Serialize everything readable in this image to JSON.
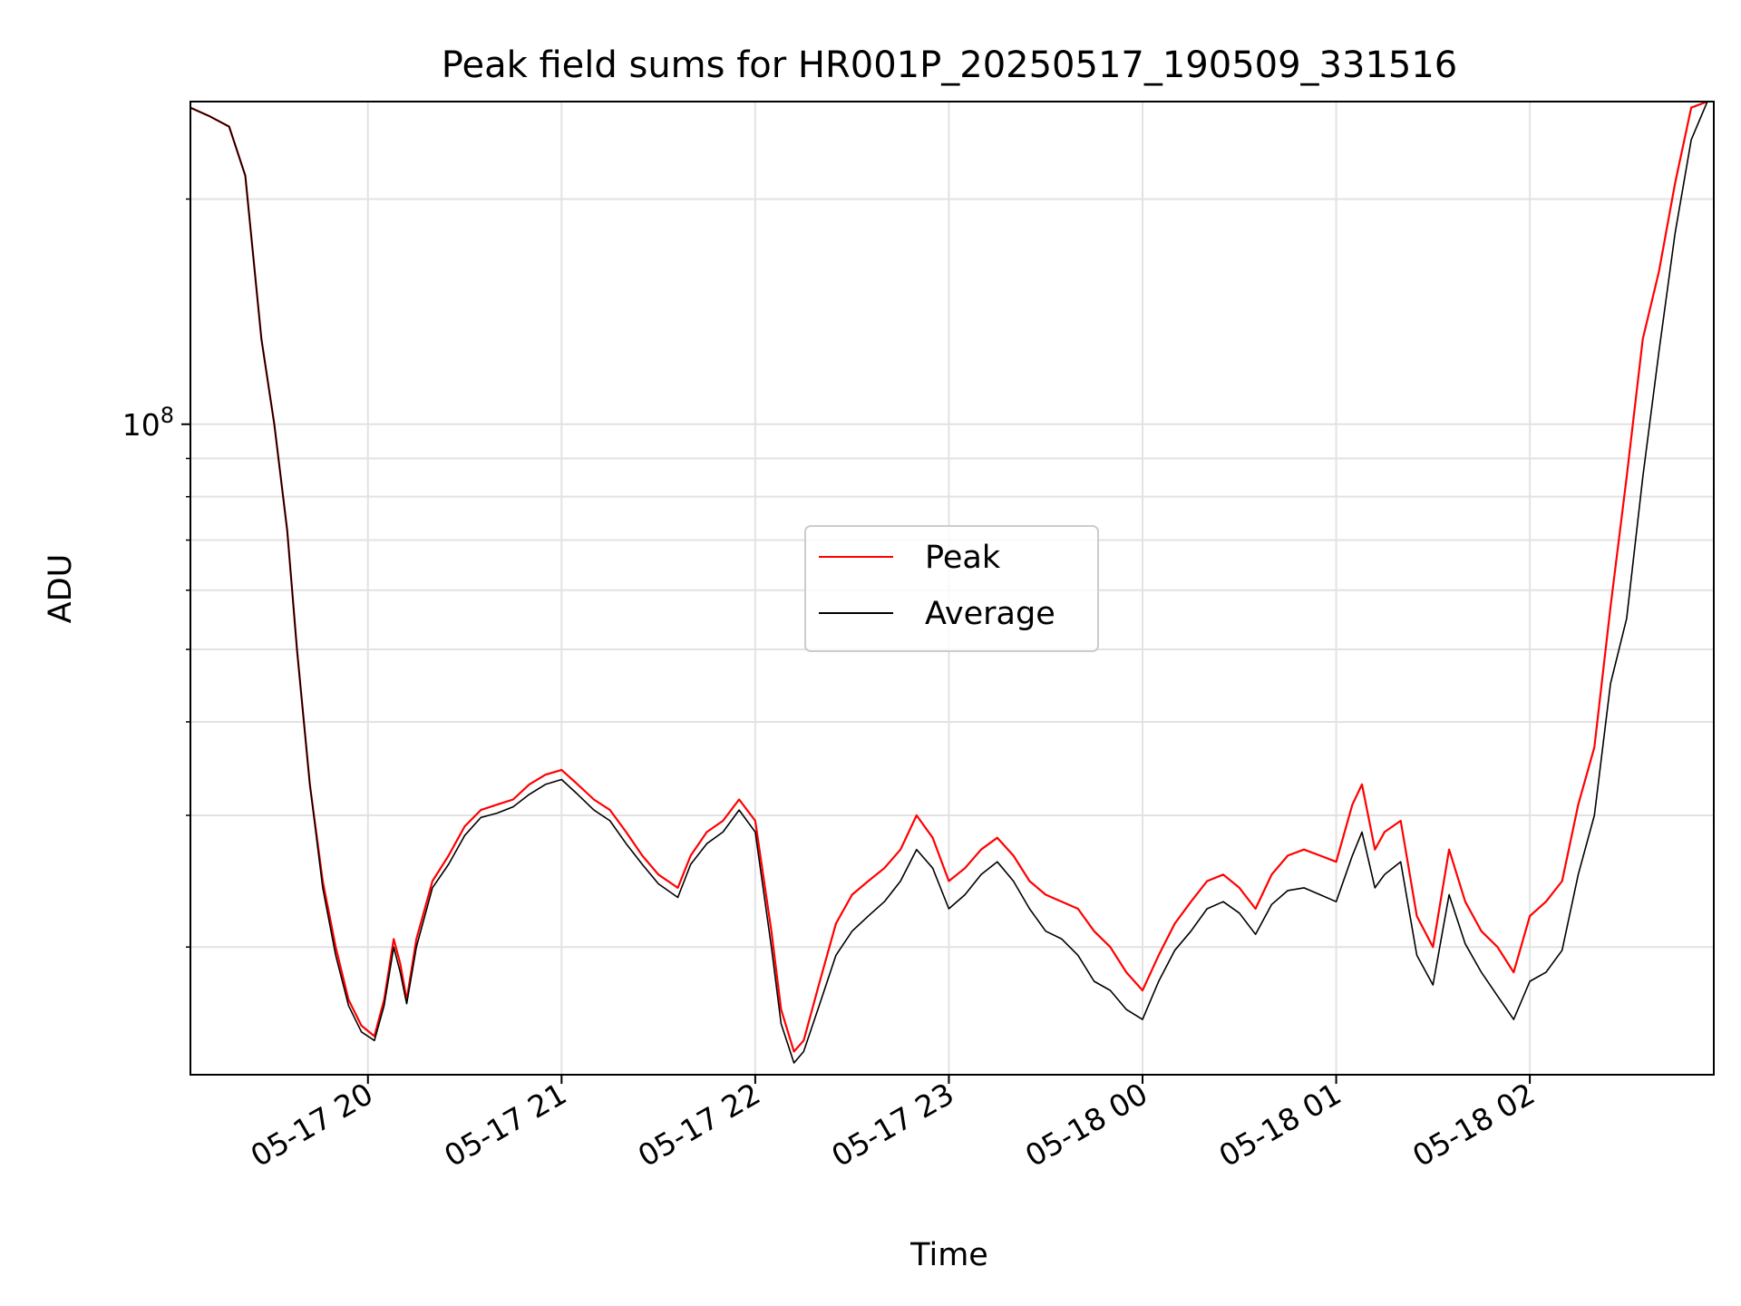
{
  "chart_data": {
    "type": "line",
    "title": "Peak field sums for HR001P_20250517_190509_331516",
    "xlabel": "Time",
    "ylabel": "ADU",
    "y_scale": "log",
    "ylim": [
      13500000,
      270000000
    ],
    "xlim": [
      "2025-05-17 19:05",
      "2025-05-18 02:57"
    ],
    "grid": true,
    "legend_position": "center",
    "x_tick_labels": [
      "05-17 20",
      "05-17 21",
      "05-17 22",
      "05-17 23",
      "05-18 00",
      "05-18 01",
      "05-18 02"
    ],
    "x_ticks": [
      "2025-05-17 20:00",
      "2025-05-17 21:00",
      "2025-05-17 22:00",
      "2025-05-17 23:00",
      "2025-05-18 00:00",
      "2025-05-18 01:00",
      "2025-05-18 02:00"
    ],
    "y_tick_labels": [
      {
        "base": "10",
        "exp": "8",
        "value": 100000000
      }
    ],
    "series": [
      {
        "name": "Peak",
        "color": "#ff0000",
        "x": [
          "2025-05-17 19:05",
          "2025-05-17 19:11",
          "2025-05-17 19:17",
          "2025-05-17 19:22",
          "2025-05-17 19:27",
          "2025-05-17 19:31",
          "2025-05-17 19:35",
          "2025-05-17 19:38",
          "2025-05-17 19:42",
          "2025-05-17 19:46",
          "2025-05-17 19:50",
          "2025-05-17 19:54",
          "2025-05-17 19:58",
          "2025-05-17 20:02",
          "2025-05-17 20:05",
          "2025-05-17 20:08",
          "2025-05-17 20:10",
          "2025-05-17 20:12",
          "2025-05-17 20:15",
          "2025-05-17 20:20",
          "2025-05-17 20:25",
          "2025-05-17 20:30",
          "2025-05-17 20:35",
          "2025-05-17 20:40",
          "2025-05-17 20:45",
          "2025-05-17 20:50",
          "2025-05-17 20:55",
          "2025-05-17 21:00",
          "2025-05-17 21:05",
          "2025-05-17 21:10",
          "2025-05-17 21:15",
          "2025-05-17 21:20",
          "2025-05-17 21:25",
          "2025-05-17 21:30",
          "2025-05-17 21:36",
          "2025-05-17 21:40",
          "2025-05-17 21:45",
          "2025-05-17 21:50",
          "2025-05-17 21:55",
          "2025-05-17 22:00",
          "2025-05-17 22:05",
          "2025-05-17 22:08",
          "2025-05-17 22:12",
          "2025-05-17 22:15",
          "2025-05-17 22:20",
          "2025-05-17 22:25",
          "2025-05-17 22:30",
          "2025-05-17 22:35",
          "2025-05-17 22:40",
          "2025-05-17 22:45",
          "2025-05-17 22:50",
          "2025-05-17 22:55",
          "2025-05-17 23:00",
          "2025-05-17 23:05",
          "2025-05-17 23:10",
          "2025-05-17 23:15",
          "2025-05-17 23:20",
          "2025-05-17 23:25",
          "2025-05-17 23:30",
          "2025-05-17 23:35",
          "2025-05-17 23:40",
          "2025-05-17 23:45",
          "2025-05-17 23:50",
          "2025-05-17 23:55",
          "2025-05-18 00:00",
          "2025-05-18 00:05",
          "2025-05-18 00:10",
          "2025-05-18 00:15",
          "2025-05-18 00:20",
          "2025-05-18 00:25",
          "2025-05-18 00:30",
          "2025-05-18 00:35",
          "2025-05-18 00:40",
          "2025-05-18 00:45",
          "2025-05-18 00:50",
          "2025-05-18 00:55",
          "2025-05-18 01:00",
          "2025-05-18 01:05",
          "2025-05-18 01:08",
          "2025-05-18 01:12",
          "2025-05-18 01:15",
          "2025-05-18 01:20",
          "2025-05-18 01:25",
          "2025-05-18 01:30",
          "2025-05-18 01:35",
          "2025-05-18 01:40",
          "2025-05-18 01:45",
          "2025-05-18 01:50",
          "2025-05-18 01:55",
          "2025-05-18 02:00",
          "2025-05-18 02:05",
          "2025-05-18 02:10",
          "2025-05-18 02:15",
          "2025-05-18 02:20",
          "2025-05-18 02:25",
          "2025-05-18 02:30",
          "2025-05-18 02:35",
          "2025-05-18 02:40",
          "2025-05-18 02:45",
          "2025-05-18 02:50",
          "2025-05-18 02:55"
        ],
        "y": [
          265000000,
          258000000,
          250000000,
          215000000,
          130000000,
          100000000,
          72000000,
          50000000,
          33000000,
          24500000,
          20000000,
          17000000,
          15700000,
          15200000,
          17000000,
          20500000,
          19000000,
          17000000,
          20500000,
          24500000,
          26500000,
          29000000,
          30500000,
          31000000,
          31500000,
          33000000,
          34000000,
          34500000,
          33000000,
          31500000,
          30500000,
          28500000,
          26500000,
          25000000,
          24000000,
          26500000,
          28500000,
          29500000,
          31500000,
          29500000,
          21000000,
          16500000,
          14500000,
          15000000,
          18000000,
          21500000,
          23500000,
          24500000,
          25500000,
          27000000,
          30000000,
          28000000,
          24500000,
          25500000,
          27000000,
          28000000,
          26500000,
          24500000,
          23500000,
          23000000,
          22500000,
          21000000,
          20000000,
          18500000,
          17500000,
          19500000,
          21500000,
          23000000,
          24500000,
          25000000,
          24000000,
          22500000,
          25000000,
          26500000,
          27000000,
          26500000,
          26000000,
          31000000,
          33000000,
          27000000,
          28500000,
          29500000,
          22000000,
          20000000,
          27000000,
          23000000,
          21000000,
          20000000,
          18500000,
          22000000,
          23000000,
          24500000,
          31000000,
          37000000,
          57000000,
          85000000,
          130000000,
          160000000,
          210000000,
          265000000,
          270000000
        ]
      },
      {
        "name": "Average",
        "color": "#000000",
        "x": [
          "2025-05-17 19:05",
          "2025-05-17 19:11",
          "2025-05-17 19:17",
          "2025-05-17 19:22",
          "2025-05-17 19:27",
          "2025-05-17 19:31",
          "2025-05-17 19:35",
          "2025-05-17 19:38",
          "2025-05-17 19:42",
          "2025-05-17 19:46",
          "2025-05-17 19:50",
          "2025-05-17 19:54",
          "2025-05-17 19:58",
          "2025-05-17 20:02",
          "2025-05-17 20:05",
          "2025-05-17 20:08",
          "2025-05-17 20:10",
          "2025-05-17 20:12",
          "2025-05-17 20:15",
          "2025-05-17 20:20",
          "2025-05-17 20:25",
          "2025-05-17 20:30",
          "2025-05-17 20:35",
          "2025-05-17 20:40",
          "2025-05-17 20:45",
          "2025-05-17 20:50",
          "2025-05-17 20:55",
          "2025-05-17 21:00",
          "2025-05-17 21:05",
          "2025-05-17 21:10",
          "2025-05-17 21:15",
          "2025-05-17 21:20",
          "2025-05-17 21:25",
          "2025-05-17 21:30",
          "2025-05-17 21:36",
          "2025-05-17 21:40",
          "2025-05-17 21:45",
          "2025-05-17 21:50",
          "2025-05-17 21:55",
          "2025-05-17 22:00",
          "2025-05-17 22:05",
          "2025-05-17 22:08",
          "2025-05-17 22:12",
          "2025-05-17 22:15",
          "2025-05-17 22:20",
          "2025-05-17 22:25",
          "2025-05-17 22:30",
          "2025-05-17 22:35",
          "2025-05-17 22:40",
          "2025-05-17 22:45",
          "2025-05-17 22:50",
          "2025-05-17 22:55",
          "2025-05-17 23:00",
          "2025-05-17 23:05",
          "2025-05-17 23:10",
          "2025-05-17 23:15",
          "2025-05-17 23:20",
          "2025-05-17 23:25",
          "2025-05-17 23:30",
          "2025-05-17 23:35",
          "2025-05-17 23:40",
          "2025-05-17 23:45",
          "2025-05-17 23:50",
          "2025-05-17 23:55",
          "2025-05-18 00:00",
          "2025-05-18 00:05",
          "2025-05-18 00:10",
          "2025-05-18 00:15",
          "2025-05-18 00:20",
          "2025-05-18 00:25",
          "2025-05-18 00:30",
          "2025-05-18 00:35",
          "2025-05-18 00:40",
          "2025-05-18 00:45",
          "2025-05-18 00:50",
          "2025-05-18 00:55",
          "2025-05-18 01:00",
          "2025-05-18 01:05",
          "2025-05-18 01:08",
          "2025-05-18 01:12",
          "2025-05-18 01:15",
          "2025-05-18 01:20",
          "2025-05-18 01:25",
          "2025-05-18 01:30",
          "2025-05-18 01:35",
          "2025-05-18 01:40",
          "2025-05-18 01:45",
          "2025-05-18 01:50",
          "2025-05-18 01:55",
          "2025-05-18 02:00",
          "2025-05-18 02:05",
          "2025-05-18 02:10",
          "2025-05-18 02:15",
          "2025-05-18 02:20",
          "2025-05-18 02:25",
          "2025-05-18 02:30",
          "2025-05-18 02:35",
          "2025-05-18 02:40",
          "2025-05-18 02:45",
          "2025-05-18 02:50",
          "2025-05-18 02:55"
        ],
        "y": [
          265000000,
          258000000,
          250000000,
          215000000,
          130000000,
          100000000,
          72000000,
          50000000,
          33000000,
          24000000,
          19500000,
          16700000,
          15400000,
          15000000,
          16700000,
          20000000,
          18500000,
          16800000,
          20000000,
          24000000,
          25800000,
          28200000,
          29800000,
          30200000,
          30800000,
          32000000,
          33000000,
          33500000,
          32000000,
          30500000,
          29500000,
          27500000,
          25800000,
          24300000,
          23300000,
          25800000,
          27500000,
          28500000,
          30500000,
          28500000,
          20000000,
          15800000,
          14000000,
          14500000,
          16800000,
          19500000,
          21000000,
          22000000,
          23000000,
          24500000,
          27000000,
          25500000,
          22500000,
          23500000,
          25000000,
          26000000,
          24500000,
          22500000,
          21000000,
          20500000,
          19500000,
          18000000,
          17500000,
          16500000,
          16000000,
          18000000,
          19800000,
          21000000,
          22500000,
          23000000,
          22200000,
          20800000,
          22800000,
          23800000,
          24000000,
          23500000,
          23000000,
          26500000,
          28500000,
          24000000,
          25000000,
          26000000,
          19500000,
          17800000,
          23500000,
          20200000,
          18500000,
          17200000,
          16000000,
          18000000,
          18500000,
          19800000,
          25000000,
          30000000,
          45000000,
          55000000,
          85000000,
          125000000,
          180000000,
          240000000,
          270000000
        ]
      }
    ]
  }
}
